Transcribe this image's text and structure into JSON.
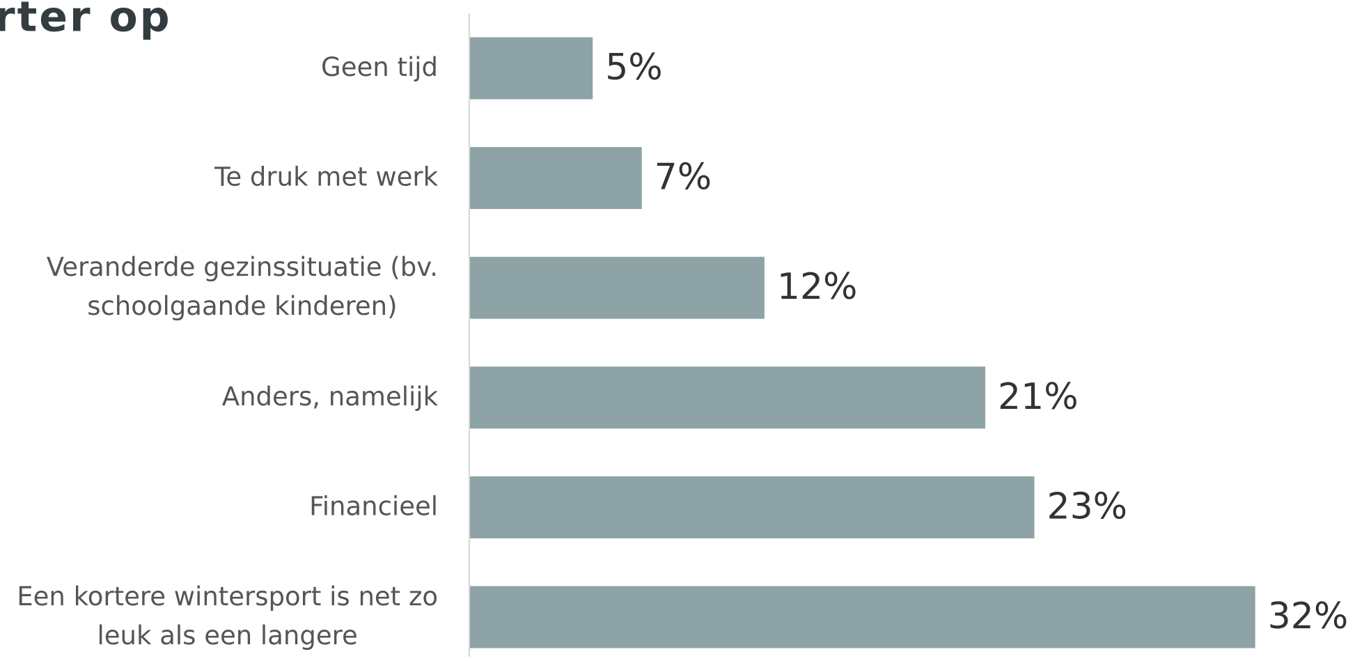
{
  "chart_data": {
    "type": "bar",
    "orientation": "horizontal",
    "title": "rter op",
    "categories": [
      "Geen tijd",
      "Te druk met werk",
      "Veranderde gezinssituatie (bv. schoolgaande kinderen)",
      "Anders, namelijk",
      "Financieel",
      "Een kortere wintersport is net zo leuk als een langere"
    ],
    "values": [
      5,
      7,
      12,
      21,
      23,
      32
    ],
    "value_labels": [
      "5%",
      "7%",
      "12%",
      "21%",
      "23%",
      "32%"
    ],
    "color": "#8ea3a5"
  }
}
